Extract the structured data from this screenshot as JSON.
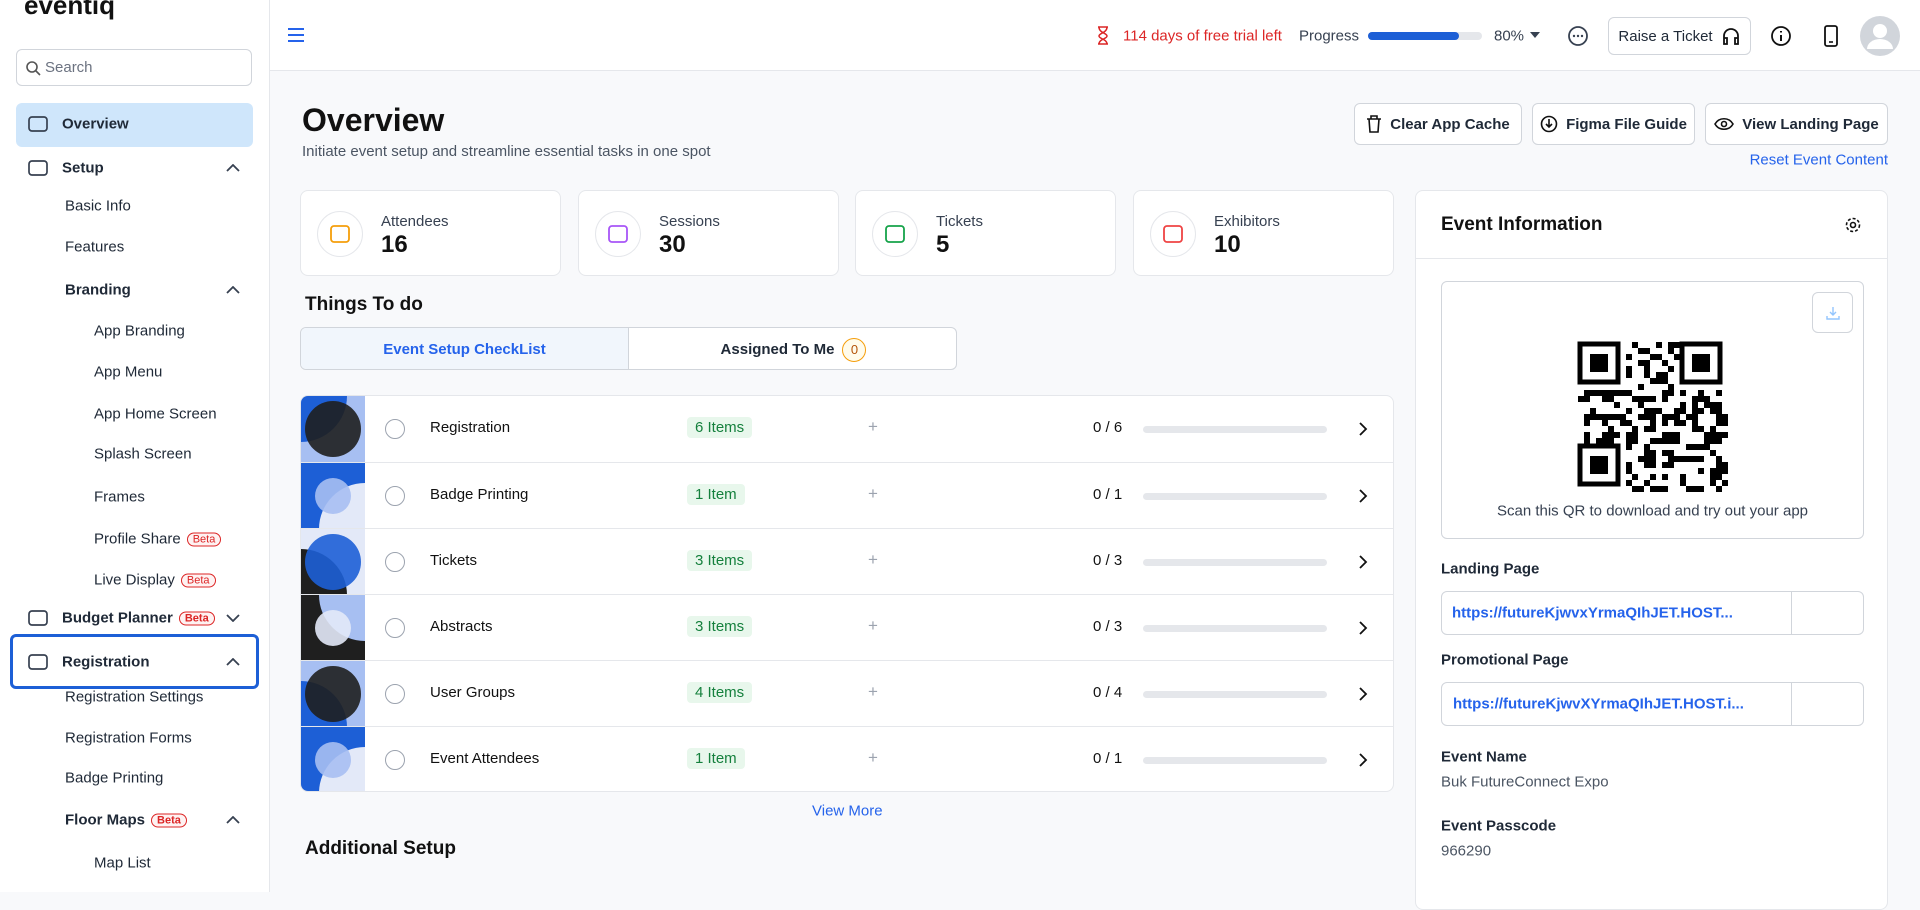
{
  "sidebar": {
    "logo": "eventiq",
    "search_placeholder": "Search",
    "items": [
      {
        "label": "Overview"
      },
      {
        "label": "Setup"
      },
      {
        "label": "Basic Info"
      },
      {
        "label": "Features"
      },
      {
        "label": "Branding"
      },
      {
        "label": "App Branding"
      },
      {
        "label": "App Menu"
      },
      {
        "label": "App Home Screen"
      },
      {
        "label": "Splash Screen"
      },
      {
        "label": "Frames"
      },
      {
        "label": "Profile Share",
        "badge": "Beta"
      },
      {
        "label": "Live Display",
        "badge": "Beta"
      },
      {
        "label": "Budget Planner",
        "badge": "Beta"
      },
      {
        "label": "Registration"
      },
      {
        "label": "Registration Settings"
      },
      {
        "label": "Registration Forms"
      },
      {
        "label": "Badge Printing"
      },
      {
        "label": "Floor Maps",
        "badge": "Beta"
      },
      {
        "label": "Map List"
      }
    ]
  },
  "topbar": {
    "trial": "114 days of free trial left",
    "progress_label": "Progress",
    "progress": {
      "value": 80,
      "label": "80%"
    },
    "ticket_button": "Raise a Ticket"
  },
  "header": {
    "title": "Overview",
    "subtitle": "Initiate event setup and streamline essential tasks in one spot",
    "buttons": [
      "Clear App Cache",
      "Figma File Guide",
      "View Landing Page"
    ],
    "reset_link": "Reset Event Content"
  },
  "stats": [
    {
      "label": "Attendees",
      "value": "16"
    },
    {
      "label": "Sessions",
      "value": "30"
    },
    {
      "label": "Tickets",
      "value": "5"
    },
    {
      "label": "Exhibitors",
      "value": "10"
    }
  ],
  "todo": {
    "title": "Things To do",
    "tabs": [
      {
        "label": "Event Setup CheckList"
      },
      {
        "label": "Assigned To Me",
        "count": "0"
      }
    ],
    "rows": [
      {
        "name": "Registration",
        "items": "6 Items",
        "count": "0 / 6"
      },
      {
        "name": "Badge Printing",
        "items": "1 Item",
        "count": "0 / 1"
      },
      {
        "name": "Tickets",
        "items": "3 Items",
        "count": "0 / 3"
      },
      {
        "name": "Abstracts",
        "items": "3 Items",
        "count": "0 / 3"
      },
      {
        "name": "User Groups",
        "items": "4 Items",
        "count": "0 / 4"
      },
      {
        "name": "Event Attendees",
        "items": "1 Item",
        "count": "0 / 1"
      }
    ],
    "view_more": "View More"
  },
  "additional": {
    "title": "Additional Setup"
  },
  "event_info": {
    "title": "Event Information",
    "qr_caption": "Scan this QR to download and try out your app",
    "landing_label": "Landing Page",
    "landing_url": "https://futureKjwvxYrmaQIhJET.HOST...",
    "promo_label": "Promotional Page",
    "promo_url": "https://futureKjwvXYrmaQIhJET.HOST.i...",
    "name_label": "Event Name",
    "name_value": "Buk FutureConnect Expo",
    "passcode_label": "Event Passcode",
    "passcode_value": "966290"
  }
}
